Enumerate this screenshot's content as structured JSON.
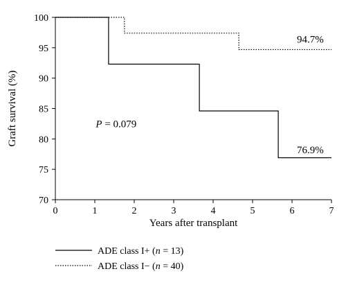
{
  "chart_data": {
    "type": "line",
    "xlabel": "Years after transplant",
    "ylabel": "Graft survival (%)",
    "xlim": [
      0,
      7
    ],
    "ylim": [
      70,
      100
    ],
    "xticks": [
      "0",
      "1",
      "2",
      "3",
      "4",
      "5",
      "6",
      "7"
    ],
    "yticks": [
      "100",
      "95",
      "90",
      "85",
      "80",
      "75",
      "70"
    ],
    "grid": false,
    "legend_position": "bottom-left",
    "series": [
      {
        "name": "ADE class I+ (n = 13)",
        "legend_parts": [
          "ADE class I+ (",
          "n",
          " = 13)"
        ],
        "style": "solid",
        "step": true,
        "x": [
          0,
          1.35,
          1.35,
          3.65,
          3.65,
          5.65,
          5.65,
          7
        ],
        "y": [
          100,
          100,
          92.3,
          92.3,
          84.6,
          84.6,
          76.9,
          76.9
        ]
      },
      {
        "name": "ADE class I− (n = 40)",
        "legend_parts": [
          "ADE class I− (",
          "n",
          " = 40)"
        ],
        "style": "dotted",
        "step": true,
        "x": [
          0,
          1.75,
          1.75,
          4.65,
          4.65,
          7
        ],
        "y": [
          100,
          100,
          97.4,
          97.4,
          94.7,
          94.7
        ]
      }
    ],
    "annotations": {
      "p_value": {
        "prefix": "P",
        "text": " = 0.079",
        "x": 1.2,
        "y": 82.5
      },
      "end_labels": [
        {
          "text": "94.7%",
          "x": 6.35,
          "y": 96.4
        },
        {
          "text": "76.9%",
          "x": 6.35,
          "y": 78.2
        }
      ]
    },
    "colors": {
      "line": "#000000",
      "axis": "#000000"
    }
  }
}
